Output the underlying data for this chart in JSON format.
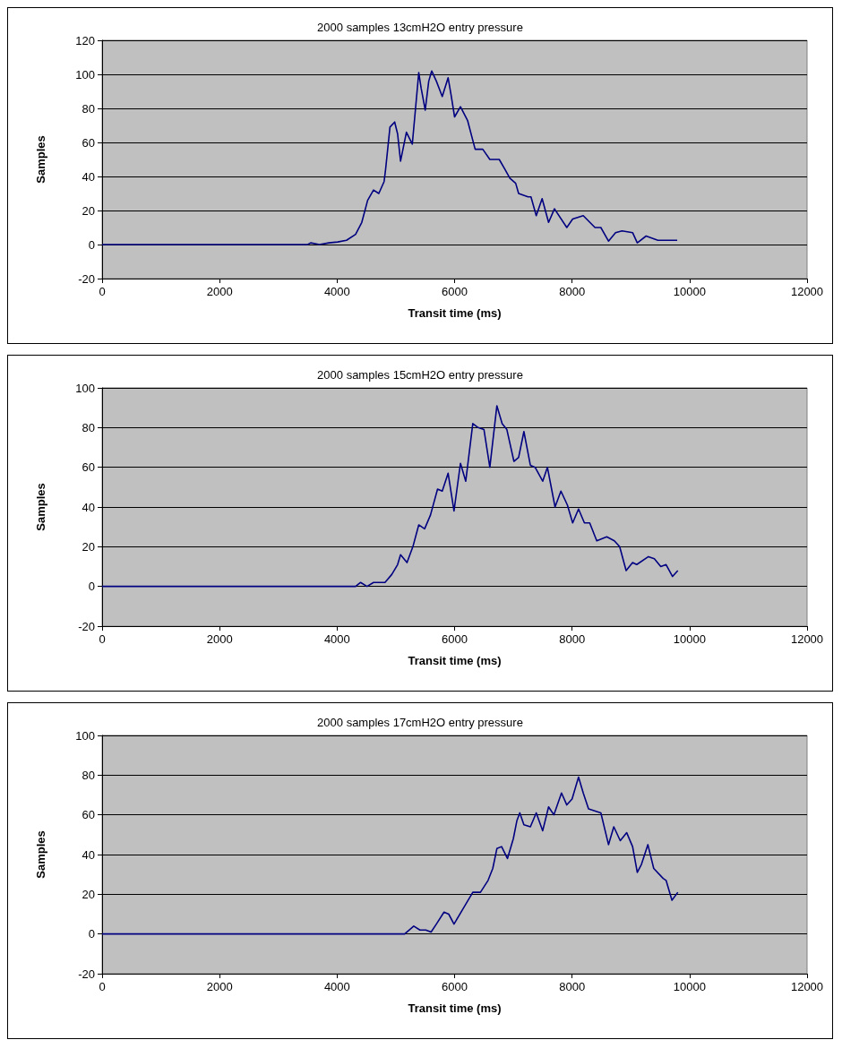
{
  "chart_data": [
    {
      "type": "line",
      "title": "2000 samples 13cmH2O entry pressure",
      "xlabel": "Transit time (ms)",
      "ylabel": "Samples",
      "color": "#000080",
      "grid": "y",
      "xlim": [
        0,
        12000
      ],
      "xticks": [
        0,
        2000,
        4000,
        6000,
        8000,
        10000,
        12000
      ],
      "ylim": [
        -20,
        120
      ],
      "yticks": [
        -20,
        0,
        20,
        40,
        60,
        80,
        100,
        120
      ],
      "x": [
        0,
        3500,
        3550,
        3700,
        3860,
        4010,
        4160,
        4315,
        4420,
        4520,
        4620,
        4710,
        4800,
        4825,
        4900,
        4980,
        5030,
        5080,
        5180,
        5280,
        5330,
        5390,
        5430,
        5500,
        5560,
        5610,
        5690,
        5790,
        5890,
        5940,
        6000,
        6100,
        6220,
        6350,
        6480,
        6600,
        6760,
        6860,
        6940,
        7040,
        7090,
        7250,
        7300,
        7390,
        7490,
        7600,
        7700,
        7910,
        8010,
        8190,
        8390,
        8490,
        8620,
        8740,
        8850,
        9030,
        9110,
        9260,
        9460,
        9790
      ],
      "values": [
        0,
        0,
        1,
        0,
        1,
        1.5,
        2.5,
        6,
        13,
        26,
        32,
        30,
        37,
        44,
        69,
        72,
        65,
        49,
        66,
        59,
        78,
        101,
        92,
        79,
        96,
        102,
        96,
        87,
        98,
        88,
        75,
        81,
        73,
        56,
        56,
        50,
        50,
        44,
        39,
        36,
        30,
        28,
        28,
        17,
        27,
        13,
        21,
        10,
        15,
        17,
        10,
        10,
        2,
        7,
        8,
        7,
        1,
        5,
        2.5,
        2.5
      ]
    },
    {
      "type": "line",
      "title": "2000 samples 15cmH2O entry pressure",
      "xlabel": "Transit time (ms)",
      "ylabel": "Samples",
      "color": "#000080",
      "grid": "y",
      "xlim": [
        0,
        12000
      ],
      "xticks": [
        0,
        2000,
        4000,
        6000,
        8000,
        10000,
        12000
      ],
      "ylim": [
        -20,
        100
      ],
      "yticks": [
        -20,
        0,
        20,
        40,
        60,
        80,
        100
      ],
      "x": [
        0,
        4315,
        4400,
        4510,
        4620,
        4815,
        4930,
        5030,
        5080,
        5190,
        5290,
        5390,
        5490,
        5590,
        5710,
        5790,
        5890,
        5990,
        6100,
        6190,
        6310,
        6400,
        6500,
        6600,
        6720,
        6810,
        6890,
        7010,
        7090,
        7180,
        7290,
        7370,
        7500,
        7580,
        7710,
        7810,
        7920,
        8010,
        8110,
        8210,
        8300,
        8420,
        8590,
        8720,
        8810,
        8920,
        9030,
        9100,
        9300,
        9400,
        9510,
        9600,
        9710,
        9800
      ],
      "values": [
        0,
        0,
        2,
        0,
        2,
        2,
        6,
        11,
        16,
        12,
        20,
        31,
        29,
        36,
        49,
        48,
        57,
        38,
        62,
        53,
        82,
        80,
        79,
        60,
        91,
        82,
        79,
        63,
        65,
        78,
        61,
        60,
        53,
        60,
        40,
        48,
        41,
        32,
        39,
        32,
        32,
        23,
        25,
        23,
        20,
        8,
        12,
        11,
        15,
        14,
        10,
        11,
        5,
        8
      ]
    },
    {
      "type": "line",
      "title": "2000 samples 17cmH2O entry pressure",
      "xlabel": "Transit time (ms)",
      "ylabel": "Samples",
      "color": "#000080",
      "grid": "y",
      "xlim": [
        0,
        12000
      ],
      "xticks": [
        0,
        2000,
        4000,
        6000,
        8000,
        10000,
        12000
      ],
      "ylim": [
        -20,
        100
      ],
      "yticks": [
        -20,
        0,
        20,
        40,
        60,
        80,
        100
      ],
      "x": [
        0,
        5150,
        5305,
        5410,
        5510,
        5600,
        5690,
        5820,
        5900,
        5990,
        6150,
        6310,
        6440,
        6570,
        6650,
        6720,
        6800,
        6900,
        7000,
        7060,
        7110,
        7180,
        7290,
        7390,
        7500,
        7600,
        7690,
        7820,
        7910,
        8000,
        8110,
        8190,
        8280,
        8490,
        8620,
        8710,
        8820,
        8930,
        9030,
        9110,
        9180,
        9290,
        9390,
        9550,
        9600,
        9700,
        9800
      ],
      "values": [
        0,
        0,
        4,
        2,
        2,
        1,
        5,
        11,
        10,
        5,
        13,
        21,
        21,
        27,
        33,
        43,
        44,
        38,
        48,
        57,
        61,
        55,
        54,
        61,
        52,
        64,
        60,
        71,
        65,
        68,
        79,
        71,
        63,
        61,
        45,
        54,
        47,
        51,
        44,
        31,
        35,
        45,
        33,
        28,
        27,
        17,
        21
      ]
    }
  ]
}
